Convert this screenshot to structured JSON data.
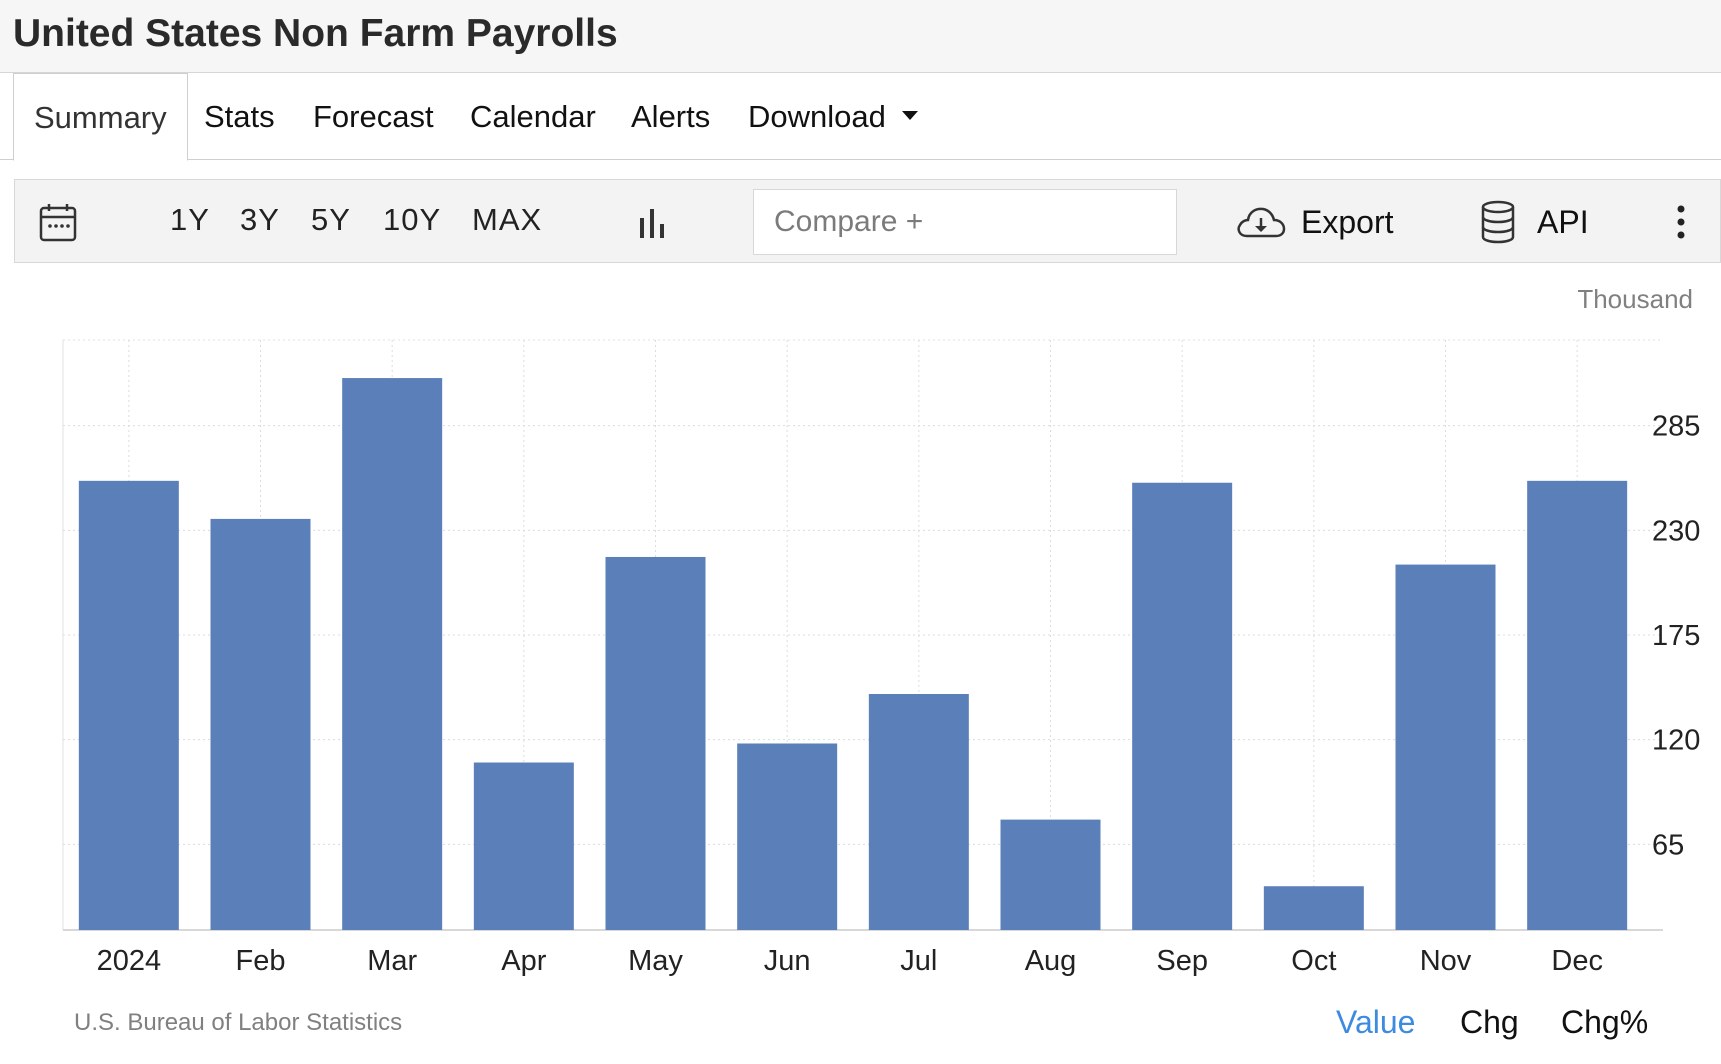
{
  "header": {
    "title": "United States Non Farm Payrolls"
  },
  "tabs": [
    {
      "label": "Summary",
      "active": true
    },
    {
      "label": "Stats"
    },
    {
      "label": "Forecast"
    },
    {
      "label": "Calendar"
    },
    {
      "label": "Alerts"
    },
    {
      "label": "Download",
      "has_dropdown": true
    }
  ],
  "toolbar": {
    "calendar_icon": "calendar-icon",
    "ranges": [
      "1Y",
      "3Y",
      "5Y",
      "10Y",
      "MAX"
    ],
    "chart_type_icon": "bar-chart-icon",
    "compare_placeholder": "Compare +",
    "export_label": "Export",
    "export_icon": "cloud-download-icon",
    "api_label": "API",
    "api_icon": "database-icon",
    "more_icon": "vertical-ellipsis-icon"
  },
  "chart_data": {
    "type": "bar",
    "title": "",
    "unit": "Thousand",
    "categories": [
      "2024",
      "Feb",
      "Mar",
      "Apr",
      "May",
      "Jun",
      "Jul",
      "Aug",
      "Sep",
      "Oct",
      "Nov",
      "Dec"
    ],
    "values": [
      256,
      236,
      310,
      108,
      216,
      118,
      144,
      78,
      255,
      43,
      212,
      256
    ],
    "yticks": [
      65,
      120,
      175,
      230,
      285
    ],
    "ylim": [
      20,
      330
    ],
    "y_axis_side": "right",
    "bar_color": "#5b7fb9",
    "grid": true,
    "grid_style": "dotted"
  },
  "footer": {
    "source": "U.S. Bureau of Labor Statistics",
    "views": [
      {
        "label": "Value",
        "active": true
      },
      {
        "label": "Chg"
      },
      {
        "label": "Chg%"
      }
    ],
    "active_color": "#3d8be0"
  }
}
